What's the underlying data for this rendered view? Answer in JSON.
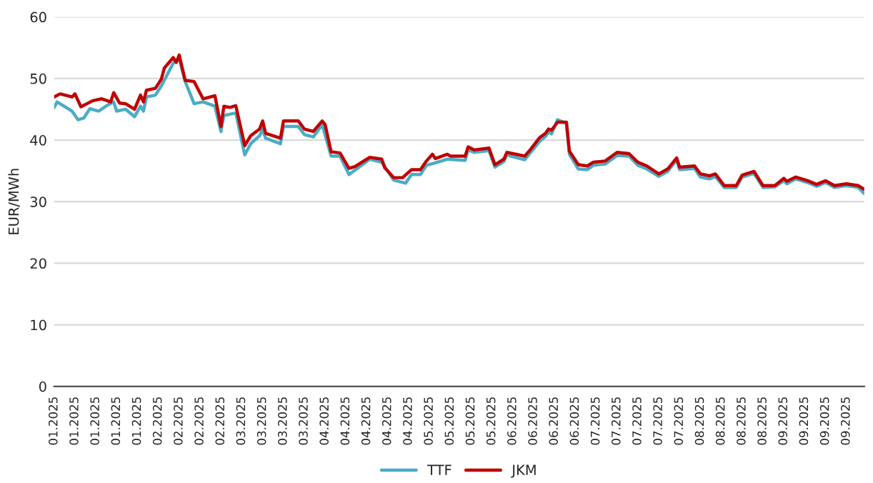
{
  "chart_data": {
    "type": "line",
    "ylabel": "EUR/MWh",
    "ylim": [
      0,
      60
    ],
    "yticks": [
      0,
      10,
      20,
      30,
      40,
      50,
      60
    ],
    "xlim": [
      "2025-01-01",
      "2025-09-30"
    ],
    "grid": "y",
    "legend": "bottom",
    "marker": "none",
    "line_style": "solid",
    "xticks": [
      {
        "value": "2025-01-01",
        "label": "01.2025"
      },
      {
        "value": "2025-01-08",
        "label": "01.2025"
      },
      {
        "value": "2025-01-15",
        "label": "01.2025"
      },
      {
        "value": "2025-01-22",
        "label": "01.2025"
      },
      {
        "value": "2025-01-29",
        "label": "01.2025"
      },
      {
        "value": "2025-02-05",
        "label": "02.2025"
      },
      {
        "value": "2025-02-12",
        "label": "02.2025"
      },
      {
        "value": "2025-02-19",
        "label": "02.2025"
      },
      {
        "value": "2025-02-26",
        "label": "02.2025"
      },
      {
        "value": "2025-03-05",
        "label": "03.2025"
      },
      {
        "value": "2025-03-12",
        "label": "03.2025"
      },
      {
        "value": "2025-03-19",
        "label": "03.2025"
      },
      {
        "value": "2025-03-26",
        "label": "03.2025"
      },
      {
        "value": "2025-04-02",
        "label": "04.2025"
      },
      {
        "value": "2025-04-09",
        "label": "04.2025"
      },
      {
        "value": "2025-04-16",
        "label": "04.2025"
      },
      {
        "value": "2025-04-23",
        "label": "04.2025"
      },
      {
        "value": "2025-04-30",
        "label": "04.2025"
      },
      {
        "value": "2025-05-07",
        "label": "05.2025"
      },
      {
        "value": "2025-05-14",
        "label": "05.2025"
      },
      {
        "value": "2025-05-21",
        "label": "05.2025"
      },
      {
        "value": "2025-05-28",
        "label": "05.2025"
      },
      {
        "value": "2025-06-04",
        "label": "06.2025"
      },
      {
        "value": "2025-06-11",
        "label": "06.2025"
      },
      {
        "value": "2025-06-18",
        "label": "06.2025"
      },
      {
        "value": "2025-06-25",
        "label": "06.2025"
      },
      {
        "value": "2025-07-02",
        "label": "07.2025"
      },
      {
        "value": "2025-07-09",
        "label": "07.2025"
      },
      {
        "value": "2025-07-16",
        "label": "07.2025"
      },
      {
        "value": "2025-07-23",
        "label": "07.2025"
      },
      {
        "value": "2025-07-30",
        "label": "07.2025"
      },
      {
        "value": "2025-08-06",
        "label": "08.2025"
      },
      {
        "value": "2025-08-13",
        "label": "08.2025"
      },
      {
        "value": "2025-08-20",
        "label": "08.2025"
      },
      {
        "value": "2025-08-27",
        "label": "08.2025"
      },
      {
        "value": "2025-09-03",
        "label": "09.2025"
      },
      {
        "value": "2025-09-10",
        "label": "09.2025"
      },
      {
        "value": "2025-09-17",
        "label": "09.2025"
      },
      {
        "value": "2025-09-24",
        "label": "09.2025"
      }
    ],
    "series": [
      {
        "name": "TTF",
        "color": "#4bacc6",
        "x": [
          "2025-01-01",
          "2025-01-02",
          "2025-01-06",
          "2025-01-07",
          "2025-01-09",
          "2025-01-11",
          "2025-01-13",
          "2025-01-16",
          "2025-01-19",
          "2025-01-21",
          "2025-01-22",
          "2025-01-25",
          "2025-01-28",
          "2025-01-30",
          "2025-01-31",
          "2025-02-01",
          "2025-02-04",
          "2025-02-06",
          "2025-02-10",
          "2025-02-12",
          "2025-02-14",
          "2025-02-17",
          "2025-02-20",
          "2025-02-24",
          "2025-02-26",
          "2025-02-27",
          "2025-03-03",
          "2025-03-06",
          "2025-03-08",
          "2025-03-11",
          "2025-03-12",
          "2025-03-13",
          "2025-03-18",
          "2025-03-19",
          "2025-03-24",
          "2025-03-26",
          "2025-03-29",
          "2025-04-01",
          "2025-04-04",
          "2025-04-07",
          "2025-04-10",
          "2025-04-17",
          "2025-04-21",
          "2025-04-25",
          "2025-04-29",
          "2025-05-01",
          "2025-05-04",
          "2025-05-06",
          "2025-05-09",
          "2025-05-13",
          "2025-05-19",
          "2025-05-20",
          "2025-05-22",
          "2025-05-27",
          "2025-05-29",
          "2025-06-01",
          "2025-06-02",
          "2025-06-04",
          "2025-06-08",
          "2025-06-10",
          "2025-06-13",
          "2025-06-15",
          "2025-06-16",
          "2025-06-17",
          "2025-06-19",
          "2025-06-22",
          "2025-06-23",
          "2025-06-26",
          "2025-06-29",
          "2025-07-01",
          "2025-07-05",
          "2025-07-09",
          "2025-07-13",
          "2025-07-16",
          "2025-07-19",
          "2025-07-23",
          "2025-07-26",
          "2025-07-29",
          "2025-07-30",
          "2025-08-04",
          "2025-08-06",
          "2025-08-09",
          "2025-08-11",
          "2025-08-14",
          "2025-08-18",
          "2025-08-20",
          "2025-08-24",
          "2025-08-27",
          "2025-08-31",
          "2025-09-03",
          "2025-09-04",
          "2025-09-07",
          "2025-09-11",
          "2025-09-14",
          "2025-09-17",
          "2025-09-20",
          "2025-09-24",
          "2025-09-28",
          "2025-09-30"
        ],
        "values": [
          45.3,
          46.2,
          45.0,
          44.7,
          43.3,
          43.6,
          45.1,
          44.7,
          45.7,
          46.2,
          44.7,
          45.0,
          43.8,
          45.5,
          44.7,
          47.0,
          47.3,
          48.8,
          52.5,
          53.2,
          49.5,
          45.9,
          46.2,
          45.5,
          41.4,
          44.0,
          44.4,
          37.6,
          39.4,
          40.7,
          41.8,
          40.3,
          39.4,
          42.2,
          42.2,
          40.9,
          40.5,
          42.5,
          37.4,
          37.4,
          34.4,
          36.9,
          36.4,
          33.5,
          33.0,
          34.4,
          34.4,
          35.9,
          36.3,
          36.9,
          36.7,
          38.4,
          38.0,
          38.3,
          35.6,
          36.5,
          37.6,
          37.3,
          36.8,
          38.0,
          39.8,
          40.6,
          41.3,
          41.0,
          43.3,
          42.7,
          37.7,
          35.3,
          35.2,
          35.9,
          36.1,
          37.5,
          37.4,
          35.9,
          35.3,
          34.1,
          34.9,
          36.8,
          35.2,
          35.4,
          34.0,
          33.7,
          34.1,
          32.3,
          32.3,
          34.0,
          34.6,
          32.3,
          32.4,
          33.4,
          32.9,
          33.7,
          33.1,
          32.5,
          33.1,
          32.3,
          32.6,
          32.3,
          31.3
        ]
      },
      {
        "name": "JKM",
        "color": "#c00000",
        "x": [
          "2025-01-01",
          "2025-01-03",
          "2025-01-07",
          "2025-01-08",
          "2025-01-10",
          "2025-01-14",
          "2025-01-17",
          "2025-01-20",
          "2025-01-21",
          "2025-01-23",
          "2025-01-25",
          "2025-01-28",
          "2025-01-30",
          "2025-01-31",
          "2025-02-01",
          "2025-02-04",
          "2025-02-06",
          "2025-02-07",
          "2025-02-10",
          "2025-02-11",
          "2025-02-12",
          "2025-02-14",
          "2025-02-17",
          "2025-02-20",
          "2025-02-24",
          "2025-02-26",
          "2025-02-27",
          "2025-03-01",
          "2025-03-03",
          "2025-03-06",
          "2025-03-08",
          "2025-03-11",
          "2025-03-12",
          "2025-03-13",
          "2025-03-18",
          "2025-03-19",
          "2025-03-24",
          "2025-03-26",
          "2025-03-29",
          "2025-04-01",
          "2025-04-02",
          "2025-04-04",
          "2025-04-07",
          "2025-04-10",
          "2025-04-12",
          "2025-04-17",
          "2025-04-21",
          "2025-04-22",
          "2025-04-25",
          "2025-04-28",
          "2025-05-01",
          "2025-05-04",
          "2025-05-06",
          "2025-05-08",
          "2025-05-09",
          "2025-05-13",
          "2025-05-14",
          "2025-05-19",
          "2025-05-20",
          "2025-05-22",
          "2025-05-27",
          "2025-05-29",
          "2025-06-01",
          "2025-06-02",
          "2025-06-04",
          "2025-06-08",
          "2025-06-10",
          "2025-06-13",
          "2025-06-15",
          "2025-06-16",
          "2025-06-17",
          "2025-06-19",
          "2025-06-22",
          "2025-06-23",
          "2025-06-26",
          "2025-06-29",
          "2025-07-01",
          "2025-07-05",
          "2025-07-09",
          "2025-07-13",
          "2025-07-16",
          "2025-07-19",
          "2025-07-23",
          "2025-07-26",
          "2025-07-29",
          "2025-07-30",
          "2025-08-04",
          "2025-08-06",
          "2025-08-09",
          "2025-08-11",
          "2025-08-14",
          "2025-08-18",
          "2025-08-20",
          "2025-08-24",
          "2025-08-27",
          "2025-08-31",
          "2025-09-03",
          "2025-09-04",
          "2025-09-07",
          "2025-09-11",
          "2025-09-14",
          "2025-09-17",
          "2025-09-20",
          "2025-09-24",
          "2025-09-28",
          "2025-09-30"
        ],
        "values": [
          47.0,
          47.5,
          47.0,
          47.5,
          45.4,
          46.4,
          46.7,
          46.2,
          47.7,
          46.0,
          45.9,
          45.0,
          47.3,
          46.2,
          48.1,
          48.4,
          49.9,
          51.7,
          53.4,
          52.6,
          53.8,
          49.7,
          49.5,
          46.7,
          47.2,
          42.2,
          45.5,
          45.3,
          45.6,
          39.1,
          40.7,
          41.8,
          43.1,
          41.1,
          40.3,
          43.1,
          43.1,
          41.8,
          41.4,
          43.1,
          42.5,
          38.1,
          37.9,
          35.4,
          35.7,
          37.2,
          36.9,
          35.5,
          33.9,
          33.9,
          35.2,
          35.2,
          36.6,
          37.7,
          37.0,
          37.7,
          37.4,
          37.4,
          38.9,
          38.4,
          38.7,
          36.0,
          36.9,
          38.0,
          37.8,
          37.4,
          38.5,
          40.4,
          41.1,
          41.8,
          41.6,
          42.9,
          42.9,
          38.2,
          36.0,
          35.8,
          36.4,
          36.6,
          38.0,
          37.8,
          36.4,
          35.8,
          34.5,
          35.3,
          37.1,
          35.6,
          35.8,
          34.5,
          34.2,
          34.5,
          32.6,
          32.6,
          34.3,
          34.9,
          32.6,
          32.6,
          33.8,
          33.3,
          34.0,
          33.4,
          32.8,
          33.4,
          32.6,
          32.9,
          32.6,
          32.0
        ]
      }
    ]
  }
}
